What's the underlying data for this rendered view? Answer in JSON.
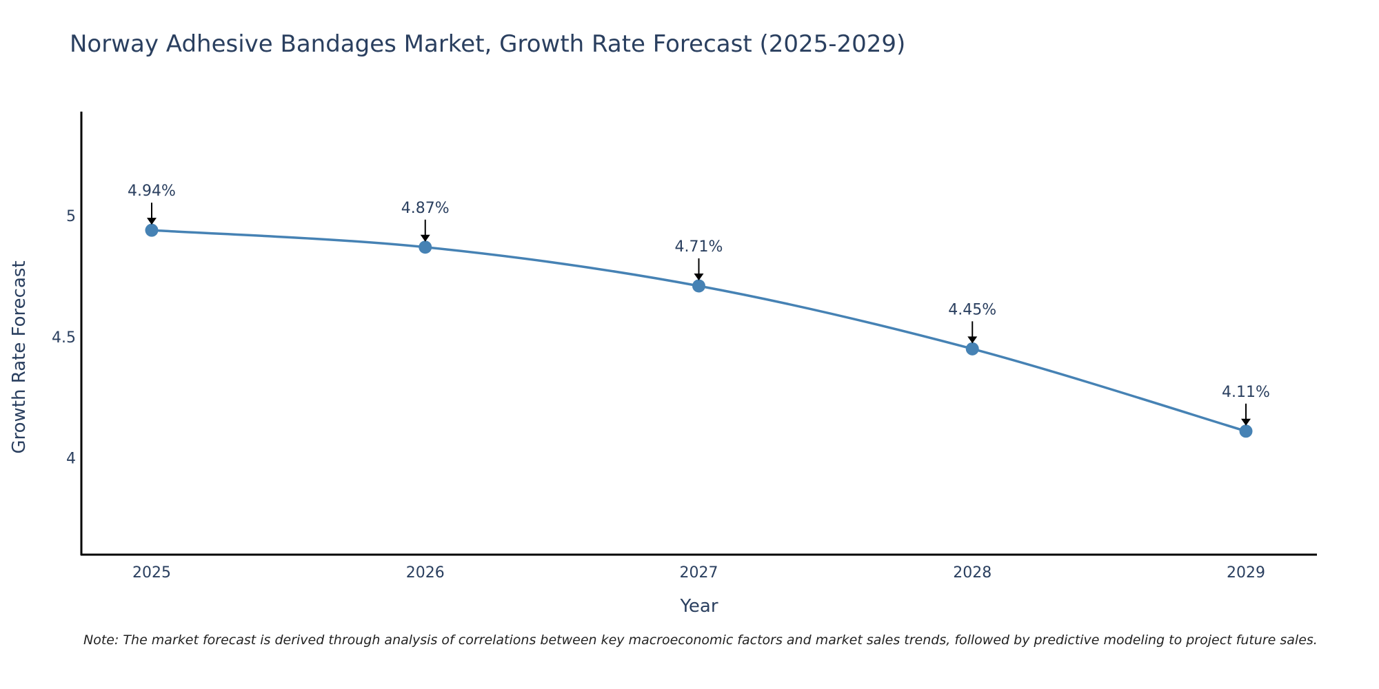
{
  "chart_data": {
    "type": "line",
    "title": "Norway Adhesive Bandages Market, Growth Rate Forecast (2025-2029)",
    "xlabel": "Year",
    "ylabel": "Growth Rate Forecast",
    "categories": [
      "2025",
      "2026",
      "2027",
      "2028",
      "2029"
    ],
    "series": [
      {
        "name": "Growth Rate Forecast",
        "values": [
          4.94,
          4.87,
          4.71,
          4.45,
          4.11
        ],
        "labels": [
          "4.94%",
          "4.87%",
          "4.71%",
          "4.45%",
          "4.11%"
        ],
        "color": "#4682b4"
      }
    ],
    "ylim": [
      3.6,
      5.43
    ],
    "yticks": [
      4,
      4.5,
      5
    ],
    "ytick_labels": [
      "4",
      "4.5",
      "5"
    ],
    "grid": false,
    "line_shape": "spline",
    "note": "Note: The market forecast is derived through analysis of correlations between key macroeconomic factors and market sales trends, followed by predictive modeling to project future sales."
  }
}
